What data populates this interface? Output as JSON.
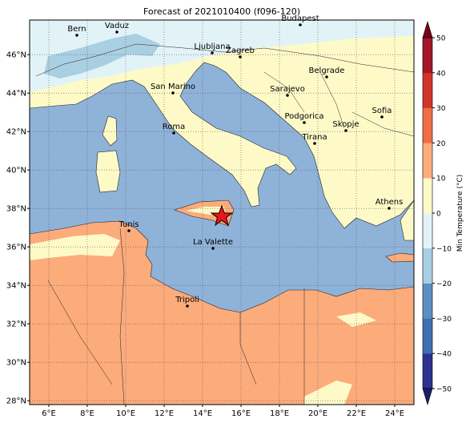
{
  "chart_data": {
    "type": "map",
    "title": "Forecast of 2021010400 (f096-120)",
    "xlim": [
      5,
      25
    ],
    "ylim": [
      27.8,
      47.8
    ],
    "xticks": [
      {
        "value": 6,
        "label": "6°E"
      },
      {
        "value": 8,
        "label": "8°E"
      },
      {
        "value": 10,
        "label": "10°E"
      },
      {
        "value": 12,
        "label": "12°E"
      },
      {
        "value": 14,
        "label": "14°E"
      },
      {
        "value": 16,
        "label": "16°E"
      },
      {
        "value": 18,
        "label": "18°E"
      },
      {
        "value": 20,
        "label": "20°E"
      },
      {
        "value": 22,
        "label": "22°E"
      },
      {
        "value": 24,
        "label": "24°E"
      }
    ],
    "yticks": [
      {
        "value": 28,
        "label": "28°N"
      },
      {
        "value": 30,
        "label": "30°N"
      },
      {
        "value": 32,
        "label": "32°N"
      },
      {
        "value": 34,
        "label": "34°N"
      },
      {
        "value": 36,
        "label": "36°N"
      },
      {
        "value": 38,
        "label": "38°N"
      },
      {
        "value": 40,
        "label": "40°N"
      },
      {
        "value": 42,
        "label": "42°N"
      },
      {
        "value": 44,
        "label": "44°N"
      },
      {
        "value": 46,
        "label": "46°N"
      }
    ],
    "grid": true,
    "cities": [
      "Bern",
      "Vaduz",
      "Budapest",
      "Ljubljana",
      "Zagreb",
      "Belgrade",
      "San Marino",
      "Sarajevo",
      "Sofia",
      "Podgorica",
      "Skopje",
      "Roma",
      "Tirana",
      "Athens",
      "Tunis",
      "La Valette",
      "Tripoli"
    ],
    "colorbar": {
      "label": "Min Temperature (°C)",
      "lim": [
        -50,
        50
      ],
      "ticks": [
        {
          "value": -50,
          "label": "−50"
        },
        {
          "value": -40,
          "label": "−40"
        },
        {
          "value": -30,
          "label": "−30"
        },
        {
          "value": -20,
          "label": "−20"
        },
        {
          "value": -10,
          "label": "−10"
        },
        0,
        10,
        20,
        30,
        40,
        50
      ],
      "colors": [
        "#2c3290",
        "#3f6fb0",
        "#5b8fc2",
        "#a9cfe3",
        "#e2f3f8",
        "#fefac8",
        "#fcab7b",
        "#ef6d47",
        "#d3342b",
        "#a21628"
      ],
      "under_color": "#1a1f6e",
      "over_color": "#7a0018"
    }
  }
}
